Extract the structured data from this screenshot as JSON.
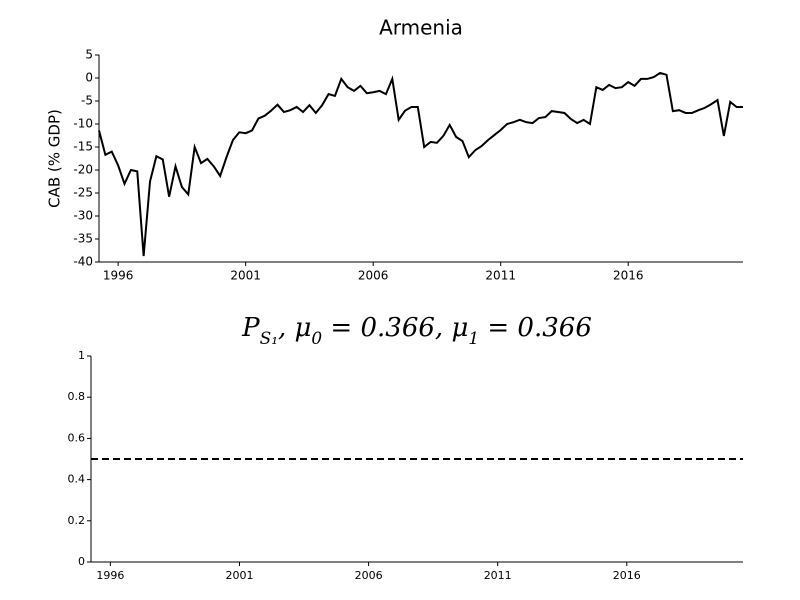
{
  "chart_data": [
    {
      "type": "line",
      "title": "Armenia",
      "ylabel": "CAB (% GDP)",
      "x": [
        1995.25,
        1995.5,
        1995.75,
        1996,
        1996.25,
        1996.5,
        1996.75,
        1997,
        1997.25,
        1997.5,
        1997.75,
        1998,
        1998.25,
        1998.5,
        1998.75,
        1999,
        1999.25,
        1999.5,
        1999.75,
        2000,
        2000.25,
        2000.5,
        2000.75,
        2001,
        2001.25,
        2001.5,
        2001.75,
        2002,
        2002.25,
        2002.5,
        2002.75,
        2003,
        2003.25,
        2003.5,
        2003.75,
        2004,
        2004.25,
        2004.5,
        2004.75,
        2005,
        2005.25,
        2005.5,
        2005.75,
        2006,
        2006.25,
        2006.5,
        2006.75,
        2007,
        2007.25,
        2007.5,
        2007.75,
        2008,
        2008.25,
        2008.5,
        2008.75,
        2009,
        2009.25,
        2009.5,
        2009.75,
        2010,
        2010.25,
        2010.5,
        2010.75,
        2011,
        2011.25,
        2011.5,
        2011.75,
        2012,
        2012.25,
        2012.5,
        2012.75,
        2013,
        2013.25,
        2013.5,
        2013.75,
        2014,
        2014.25,
        2014.5,
        2014.75,
        2015,
        2015.25,
        2015.5,
        2015.75,
        2016,
        2016.25,
        2016.5,
        2016.75,
        2017,
        2017.25,
        2017.5,
        2017.75,
        2018,
        2018.25,
        2018.5,
        2018.75,
        2019,
        2019.25,
        2019.5,
        2019.75,
        2020,
        2020.25,
        2020.5
      ],
      "values": [
        -11.4,
        -16.7,
        -16,
        -19,
        -23,
        -20,
        -20.3,
        -38.7,
        -22.5,
        -17,
        -17.7,
        -25.8,
        -19.2,
        -23.7,
        -25.3,
        -15,
        -18.5,
        -17.6,
        -19.2,
        -21.3,
        -17.2,
        -13.5,
        -11.8,
        -12,
        -11.4,
        -8.8,
        -8.2,
        -7.1,
        -5.8,
        -7.4,
        -7,
        -6.3,
        -7.4,
        -5.9,
        -7.6,
        -5.9,
        -3.5,
        -3.9,
        -0.2,
        -2,
        -2.8,
        -1.7,
        -3.3,
        -3.1,
        -2.8,
        -3.5,
        -0.2,
        -9.1,
        -7.1,
        -6.3,
        -6.3,
        -15,
        -13.9,
        -14.1,
        -12.6,
        -10.2,
        -12.8,
        -13.7,
        -17.2,
        -15.7,
        -14.8,
        -13.5,
        -12.4,
        -11.3,
        -10,
        -9.6,
        -9.1,
        -9.6,
        -9.8,
        -8.7,
        -8.5,
        -7.2,
        -7.4,
        -7.6,
        -8.9,
        -9.8,
        -9.1,
        -10,
        -2,
        -2.6,
        -1.5,
        -2.2,
        -2,
        -0.9,
        -1.7,
        -0.2,
        -0.2,
        0.2,
        1.1,
        0.7,
        -7.2,
        -7,
        -7.6,
        -7.6,
        -7,
        -6.5,
        -5.7,
        -4.8,
        -12.6,
        -5.2,
        -6.3,
        -6.3
      ],
      "color": "#000000",
      "line_style": "solid",
      "xlim": [
        1995.25,
        2020.5
      ],
      "xticks": [
        1996,
        2001,
        2006,
        2011,
        2016
      ],
      "ylim": [
        -40,
        5
      ],
      "yticks": [
        -40,
        -35,
        -30,
        -25,
        -20,
        -15,
        -10,
        -5,
        0,
        5
      ]
    },
    {
      "type": "line",
      "title": [
        {
          "text": "P"
        },
        {
          "text": "S₁",
          "sub": true
        },
        {
          "text": ", μ"
        },
        {
          "text": "0",
          "sub": true
        },
        {
          "text": " = 0.366, μ"
        },
        {
          "text": "1",
          "sub": true
        },
        {
          "text": " = 0.366"
        }
      ],
      "x": [
        1995.25,
        2020.5
      ],
      "values": [
        0.5,
        0.5
      ],
      "color": "#000000",
      "line_style": "dashed",
      "xlim": [
        1995.25,
        2020.5
      ],
      "xticks": [
        1996,
        2001,
        2006,
        2011,
        2016
      ],
      "ylim": [
        0,
        1
      ],
      "yticks": [
        0,
        0.2,
        0.4,
        0.6,
        0.8,
        1
      ]
    }
  ]
}
